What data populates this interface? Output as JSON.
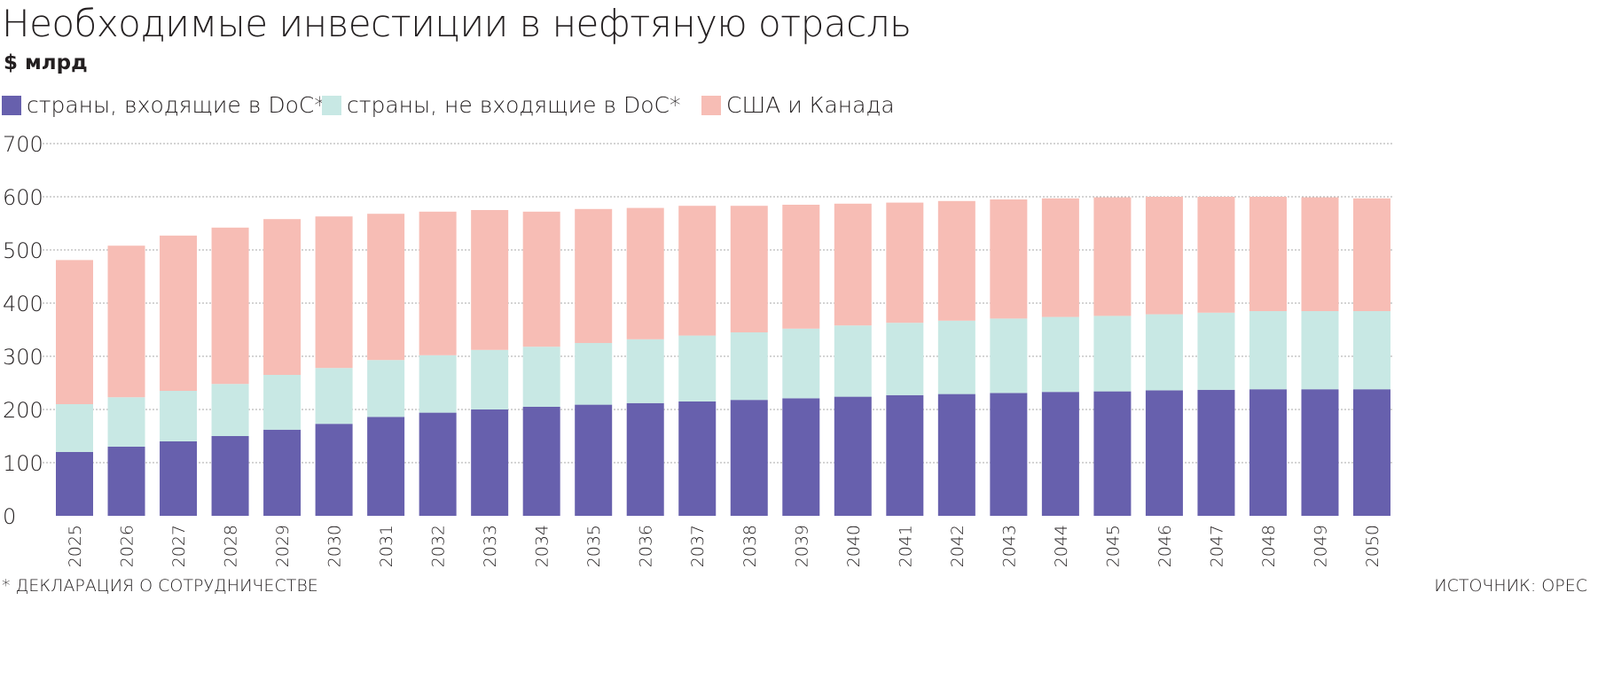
{
  "title": "Необходимые инвестиции в нефтяную отрасль",
  "unit": "$ млрд",
  "footnote": "* ДЕКЛАРАЦИЯ О СОТРУДНИЧЕСТВЕ",
  "source": "ИСТОЧНИК: OPEC",
  "chart_data": {
    "type": "bar",
    "stacked": true,
    "title": "Необходимые инвестиции в нефтяную отрасль",
    "ylabel": "$ млрд",
    "ylim": [
      0,
      700
    ],
    "yticks": [
      0,
      100,
      200,
      300,
      400,
      500,
      600,
      700
    ],
    "grid": true,
    "legend_position": "top",
    "categories": [
      "2025",
      "2026",
      "2027",
      "2028",
      "2029",
      "2030",
      "2031",
      "2032",
      "2033",
      "2034",
      "2035",
      "2036",
      "2037",
      "2038",
      "2039",
      "2040",
      "2041",
      "2042",
      "2043",
      "2044",
      "2045",
      "2046",
      "2047",
      "2048",
      "2049",
      "2050"
    ],
    "series": [
      {
        "name": "страны, входящие в DoC*",
        "color": "#6760ad",
        "values": [
          120,
          130,
          140,
          150,
          162,
          173,
          186,
          194,
          200,
          205,
          209,
          212,
          215,
          218,
          221,
          224,
          227,
          229,
          231,
          233,
          234,
          236,
          237,
          238,
          238,
          238
        ]
      },
      {
        "name": "страны, не входящие в DoC*",
        "color": "#c8e8e4",
        "values": [
          90,
          93,
          95,
          98,
          103,
          105,
          107,
          108,
          112,
          113,
          116,
          120,
          124,
          127,
          131,
          134,
          136,
          138,
          140,
          141,
          142,
          143,
          145,
          147,
          147,
          147
        ]
      },
      {
        "name": "США и Канада",
        "color": "#f7bdb5",
        "values": [
          271,
          285,
          292,
          294,
          293,
          285,
          275,
          270,
          263,
          254,
          252,
          247,
          244,
          238,
          233,
          229,
          226,
          225,
          224,
          223,
          223,
          221,
          218,
          215,
          214,
          212
        ]
      }
    ]
  }
}
